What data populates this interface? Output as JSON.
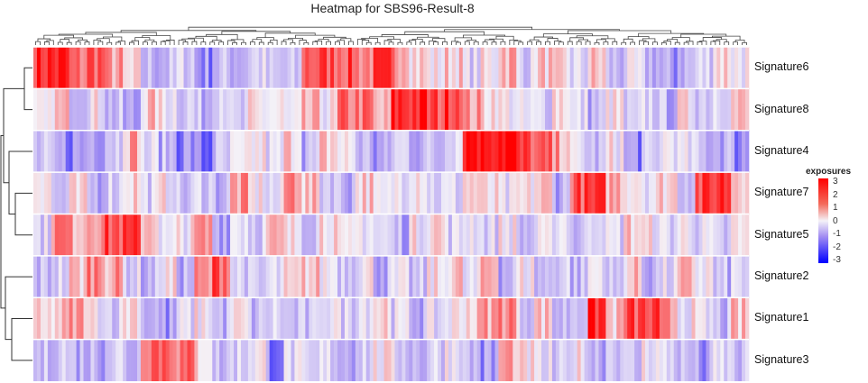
{
  "chart_data": {
    "type": "heatmap",
    "title": "Heatmap for SBS96-Result-8",
    "rows": [
      "Signature6",
      "Signature8",
      "Signature4",
      "Signature7",
      "Signature5",
      "Signature2",
      "Signature1",
      "Signature3"
    ],
    "values": [
      [
        2.5,
        2.5,
        1.5,
        2,
        1,
        0,
        -1,
        -1,
        -0.5,
        -1.5,
        -1,
        -1,
        -0.5,
        -1,
        -1,
        2,
        2,
        2,
        1.5,
        2,
        1.5,
        0.5,
        0,
        0.5,
        -0.5,
        0,
        1,
        -0.5,
        0.5,
        0,
        -0.5,
        0.5,
        -1,
        -0.5,
        -1,
        -1.5,
        -1,
        -0.5,
        0.5,
        0
      ],
      [
        -0.5,
        0.5,
        -0.5,
        0,
        -1,
        -1.5,
        0.5,
        0,
        -0.5,
        -1,
        0,
        -1,
        0,
        0,
        -0.5,
        0.5,
        0,
        1.5,
        1.5,
        0.5,
        2.5,
        2.5,
        2,
        2.5,
        1,
        0.5,
        0,
        -0.5,
        -0.5,
        0.5,
        -0.5,
        -1,
        0,
        -1,
        -0.5,
        -1,
        0,
        -0.5,
        0,
        0.5
      ],
      [
        -1,
        -1.5,
        -1.5,
        -1,
        -0.5,
        1,
        -0.5,
        -1,
        -1.5,
        -2,
        -1,
        -0.5,
        0,
        -0.5,
        0.5,
        -1,
        0.5,
        0,
        -1,
        -1.5,
        -0.5,
        -1,
        -1,
        0,
        3,
        3,
        3,
        2,
        1.5,
        1,
        -0.5,
        -1,
        0,
        -1.5,
        -1,
        0,
        -0.5,
        -1,
        -1,
        -1.5
      ],
      [
        0.5,
        -1,
        0,
        -1,
        -0.5,
        0.5,
        -0.5,
        0,
        -1,
        -0.5,
        -1,
        1,
        0,
        -0.5,
        1.5,
        0.5,
        -0.5,
        -1,
        0.5,
        -0.5,
        0,
        0.5,
        -0.5,
        -0.5,
        0.5,
        0,
        -0.5,
        0,
        0.5,
        -1,
        2,
        2,
        1,
        0.5,
        0,
        0.5,
        -0.5,
        2,
        2.5,
        1
      ],
      [
        -0.5,
        1.5,
        1,
        1.5,
        2,
        2,
        1,
        -0.5,
        0,
        1,
        -1,
        0,
        -0.5,
        0.5,
        0,
        -0.5,
        0.5,
        -0.5,
        0,
        -0.5,
        -1,
        0,
        0.5,
        -0.5,
        0,
        -0.5,
        0,
        -1,
        -0.5,
        0,
        -1,
        0,
        -0.5,
        0.5,
        0,
        -0.5,
        0,
        -0.5,
        -1,
        0
      ],
      [
        -1,
        -0.5,
        0.5,
        1.5,
        1,
        -0.5,
        -1,
        0,
        -1,
        1,
        2,
        -0.5,
        -1,
        -0.5,
        0,
        0.5,
        0,
        -0.5,
        0,
        -1,
        -0.5,
        -1,
        0,
        0.5,
        -0.5,
        1,
        -1,
        0,
        -1,
        -0.5,
        -1,
        0,
        -1,
        0.5,
        -1,
        -0.5,
        0.5,
        0,
        -1,
        -0.5
      ],
      [
        0,
        0.5,
        1,
        0,
        -0.5,
        0.5,
        -1,
        -1.5,
        -0.5,
        0,
        -1,
        0,
        -1,
        -0.5,
        -1,
        -1,
        0,
        -0.5,
        0,
        0.5,
        -0.5,
        -1,
        -0.5,
        0,
        0.5,
        1,
        1.5,
        -0.5,
        0.5,
        -1,
        -0.5,
        2.5,
        0.5,
        2,
        2,
        1,
        0,
        -0.5,
        -1,
        0.5
      ],
      [
        -1,
        -0.5,
        -1,
        -1,
        -0.5,
        -1,
        2,
        2,
        1.5,
        0.5,
        -1,
        -0.5,
        0,
        -1.5,
        -0.5,
        -1,
        -0.5,
        -1,
        -0.5,
        0,
        -0.5,
        -1,
        -0.5,
        0,
        -1,
        -1.5,
        1,
        0,
        -0.5,
        -1,
        0,
        -1,
        -0.5,
        -1,
        0,
        -0.5,
        -1,
        -1.5,
        -0.5,
        -1
      ]
    ],
    "color_scale": {
      "min": -3,
      "mid": 0,
      "max": 3,
      "low": "#0000ff",
      "midcolor": "#f4f2f8",
      "high": "#ff0000"
    },
    "legend": {
      "title": "exposures",
      "ticks": [
        "3",
        "2",
        "1",
        "0",
        "-1",
        "-2",
        "-3"
      ],
      "placement": "right"
    },
    "row_dendrogram": true,
    "column_dendrogram": true
  }
}
